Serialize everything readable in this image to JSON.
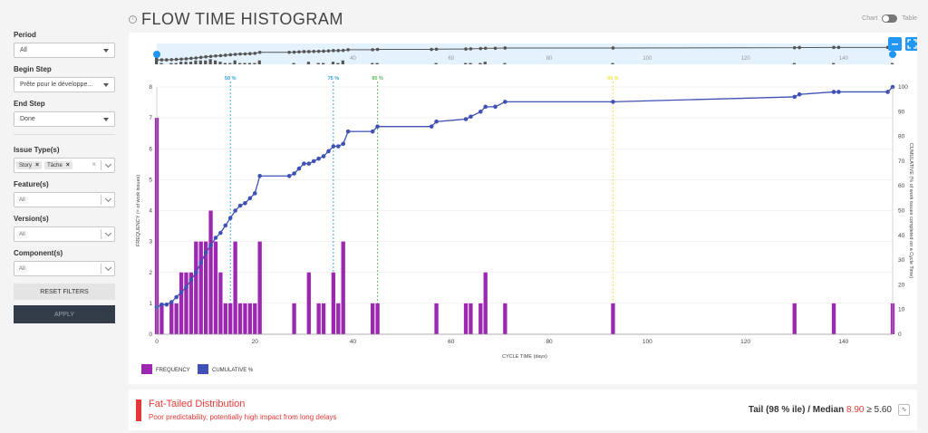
{
  "header": {
    "title": "FLOW TIME HISTOGRAM",
    "toggle_left": "Chart",
    "toggle_right": "Table"
  },
  "filters": {
    "period_label": "Period",
    "period_value": "All",
    "begin_label": "Begin Step",
    "begin_value": "Prête pour le développe...",
    "end_label": "End Step",
    "end_value": "Done",
    "issue_label": "Issue Type(s)",
    "issue_tags": [
      "Story",
      "Tâche"
    ],
    "feature_label": "Feature(s)",
    "feature_value": "All",
    "version_label": "Version(s)",
    "version_value": "All",
    "component_label": "Component(s)",
    "component_value": "All",
    "reset_label": "RESET FILTERS",
    "apply_label": "APPLY"
  },
  "chart_data": {
    "type": "bar",
    "xlabel": "CYCLE TIME (days)",
    "ylabel": "FREQUENCY (= of work issues)",
    "y2label": "CUMULATIVE (% of work issues completed on a Cycle Time)",
    "xlim": [
      0,
      150
    ],
    "ylim": [
      0,
      8
    ],
    "y2lim": [
      0,
      100
    ],
    "xticks": [
      0,
      20,
      40,
      60,
      80,
      100,
      120,
      140
    ],
    "yticks": [
      0,
      1,
      2,
      3,
      4,
      5,
      6,
      7,
      8
    ],
    "y2ticks": [
      0,
      10,
      20,
      30,
      40,
      50,
      60,
      70,
      80,
      90,
      100
    ],
    "navigator_ticks": [
      40,
      60,
      80,
      100,
      120,
      140
    ],
    "legend": [
      "FREQUENCY",
      "CUMULATIVE %"
    ],
    "legend_position": "bottom-left",
    "colors": {
      "frequency": "#9c27b0",
      "cumulative": "#3f51b5",
      "p50": "#2a9fd6",
      "p75": "#2a9fd6",
      "p85": "#5cb85c",
      "p95": "#f0e442"
    },
    "percentiles": [
      {
        "label": "50 %",
        "x": 15
      },
      {
        "label": "75 %",
        "x": 36
      },
      {
        "label": "85 %",
        "x": 45
      },
      {
        "label": "95 %",
        "x": 93
      }
    ],
    "series": [
      {
        "name": "FREQUENCY",
        "x": [
          0,
          1,
          3,
          4,
          5,
          6,
          7,
          8,
          9,
          10,
          11,
          12,
          13,
          14,
          15,
          16,
          17,
          18,
          19,
          20,
          21,
          28,
          31,
          33,
          34,
          36,
          37,
          38,
          44,
          45,
          57,
          63,
          64,
          66,
          67,
          71,
          93,
          130,
          138,
          150
        ],
        "values": [
          7,
          1,
          1,
          1,
          2,
          2,
          2,
          3,
          3,
          3,
          4,
          3,
          2,
          1,
          1,
          3,
          1,
          1,
          1,
          1,
          3,
          1,
          2,
          1,
          1,
          2,
          1,
          3,
          1,
          1,
          1,
          1,
          1,
          1,
          2,
          1,
          1,
          1,
          1,
          1
        ]
      },
      {
        "name": "CUMULATIVE %",
        "x": [
          0,
          1,
          2,
          3,
          4,
          5,
          6,
          7,
          8,
          9,
          10,
          11,
          12,
          13,
          14,
          15,
          16,
          17,
          18,
          19,
          20,
          21,
          27,
          28,
          29,
          30,
          31,
          32,
          33,
          34,
          35,
          36,
          37,
          38,
          39,
          44,
          45,
          56,
          57,
          63,
          64,
          66,
          67,
          69,
          71,
          93,
          130,
          131,
          138,
          139,
          149,
          150
        ],
        "values": [
          11,
          12,
          12,
          13,
          15,
          17,
          19,
          22,
          25,
          29,
          33,
          36,
          39,
          41,
          44,
          47,
          50,
          52,
          53,
          55,
          57,
          64,
          64,
          65,
          67,
          69,
          69,
          70,
          71,
          72,
          74,
          76,
          76,
          77,
          82,
          82,
          84,
          84,
          86,
          87,
          88,
          90,
          92,
          92,
          94,
          94,
          96,
          97,
          98,
          98,
          98,
          100
        ]
      }
    ]
  },
  "summary": {
    "title": "Fat-Tailed Distribution",
    "subtitle": "Poor predictability, potentially high impact from long delays",
    "tail_label": "Tail (98 % ile) / Median",
    "tail_value": "8.90",
    "tail_threshold": "≥ 5.60"
  }
}
